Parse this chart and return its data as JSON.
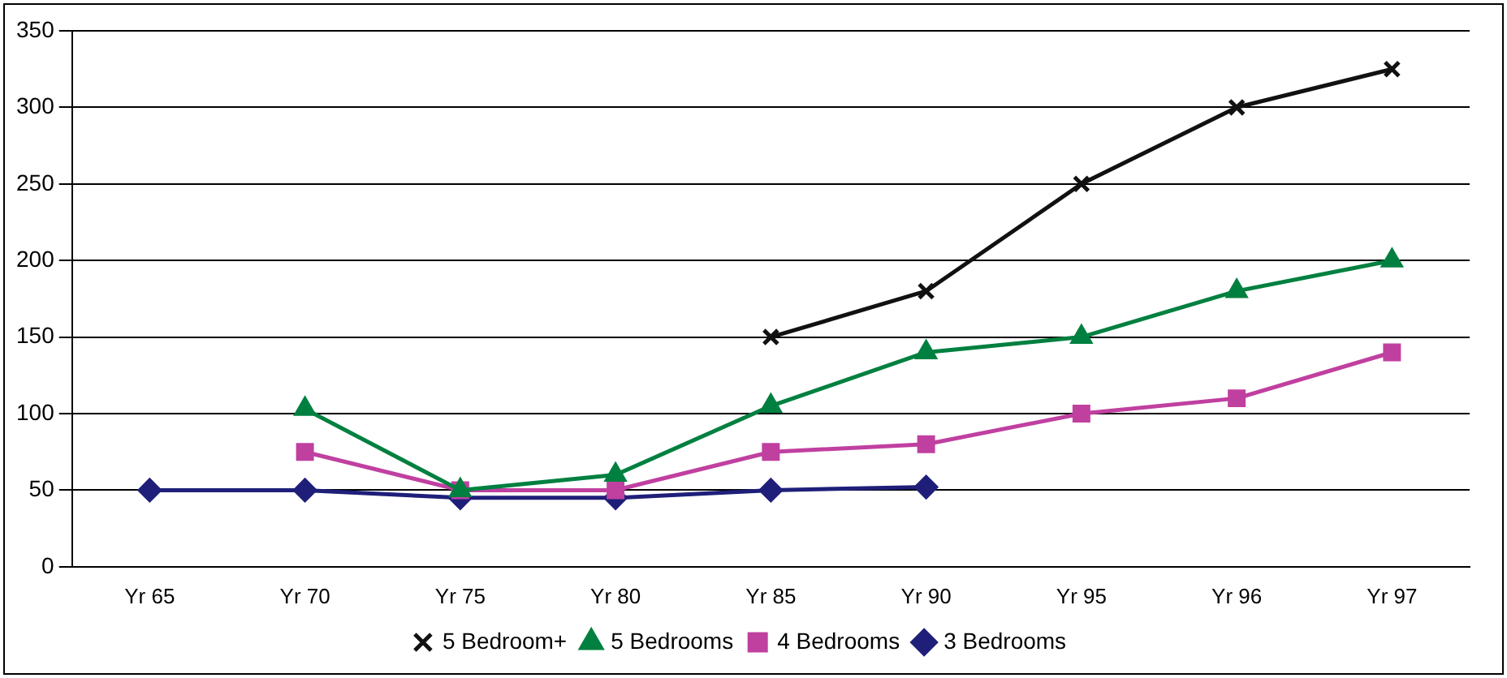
{
  "chart_data": {
    "type": "line",
    "categories": [
      "Yr 65",
      "Yr 70",
      "Yr 75",
      "Yr 80",
      "Yr 85",
      "Yr 90",
      "Yr 95",
      "Yr 96",
      "Yr 97"
    ],
    "series": [
      {
        "name": "3 Bedrooms",
        "color": "#1f1f7a",
        "marker": "diamond",
        "values": [
          50,
          50,
          45,
          45,
          50,
          52,
          null,
          null,
          null
        ]
      },
      {
        "name": "4 Bedrooms",
        "color": "#c040a0",
        "marker": "square",
        "values": [
          null,
          75,
          50,
          50,
          75,
          80,
          100,
          110,
          140
        ]
      },
      {
        "name": "5 Bedrooms",
        "color": "#008040",
        "marker": "triangle",
        "values": [
          null,
          103,
          50,
          60,
          105,
          140,
          150,
          180,
          200
        ]
      },
      {
        "name": "5 Bedroom+",
        "color": "#111111",
        "marker": "cross",
        "values": [
          null,
          null,
          null,
          null,
          150,
          180,
          250,
          300,
          325
        ]
      }
    ],
    "ylim": [
      0,
      350
    ],
    "yticks": [
      0,
      50,
      100,
      150,
      200,
      250,
      300,
      350
    ],
    "grid": "y",
    "legend": "bottom",
    "line_style": "solid"
  }
}
